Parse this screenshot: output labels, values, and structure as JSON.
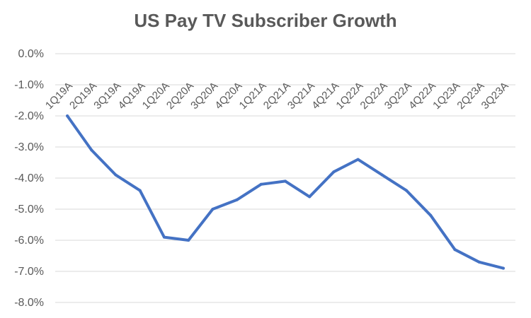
{
  "chart_data": {
    "type": "line",
    "title": "US Pay TV Subscriber Growth",
    "categories": [
      "1Q19A",
      "2Q19A",
      "3Q19A",
      "4Q19A",
      "1Q20A",
      "2Q20A",
      "3Q20A",
      "4Q20A",
      "1Q21A",
      "2Q21A",
      "3Q21A",
      "4Q21A",
      "1Q22A",
      "2Q22A",
      "3Q22A",
      "4Q22A",
      "1Q23A",
      "2Q23A",
      "3Q23A"
    ],
    "series": [
      {
        "values": [
          -2.0,
          -3.1,
          -3.9,
          -4.4,
          -5.9,
          -6.0,
          -5.0,
          -4.7,
          -4.2,
          -4.1,
          -4.6,
          -3.8,
          -3.4,
          -3.9,
          -4.4,
          -5.2,
          -6.3,
          -6.7,
          -6.9
        ]
      }
    ],
    "y_ticks": [
      "0.0%",
      "-1.0%",
      "-2.0%",
      "-3.0%",
      "-4.0%",
      "-5.0%",
      "-6.0%",
      "-7.0%",
      "-8.0%"
    ],
    "ylim": [
      -8,
      0
    ],
    "grid": true,
    "line_color": "#4472C4",
    "grid_color": "#D9D9D9",
    "text_color": "#595959"
  }
}
